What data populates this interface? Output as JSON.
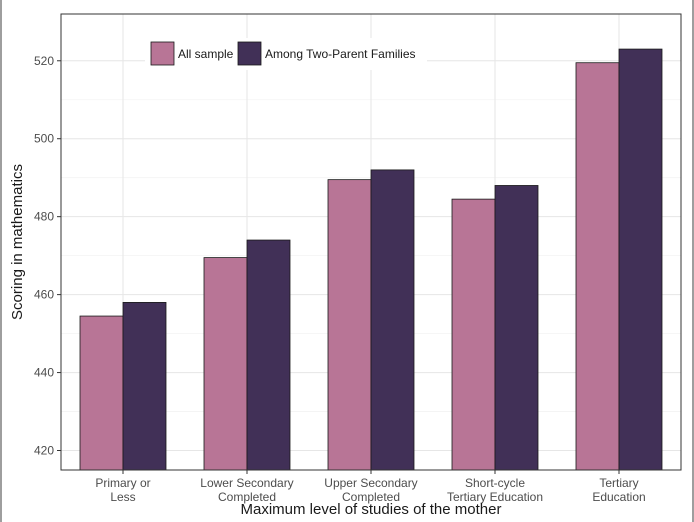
{
  "chart_data": {
    "type": "bar",
    "xlabel": "Maximum level of studies of the mother",
    "ylabel": "Scoring in mathematics",
    "ylim": [
      415,
      532
    ],
    "yticks": [
      420,
      440,
      460,
      480,
      500,
      520
    ],
    "grid": true,
    "legend_position": "top-left",
    "categories": [
      [
        "Primary or",
        "Less"
      ],
      [
        "Lower Secondary",
        "Completed"
      ],
      [
        "Upper Secondary",
        "Completed"
      ],
      [
        "Short-cycle",
        "Tertiary Education"
      ],
      [
        "Tertiary",
        "Education"
      ]
    ],
    "series": [
      {
        "name": "All sample",
        "color": "#b87596",
        "values": [
          454.5,
          469.5,
          489.5,
          484.5,
          519.5
        ]
      },
      {
        "name": "Among Two-Parent Families",
        "color": "#413057",
        "values": [
          458,
          474,
          492,
          488,
          523
        ]
      }
    ]
  }
}
